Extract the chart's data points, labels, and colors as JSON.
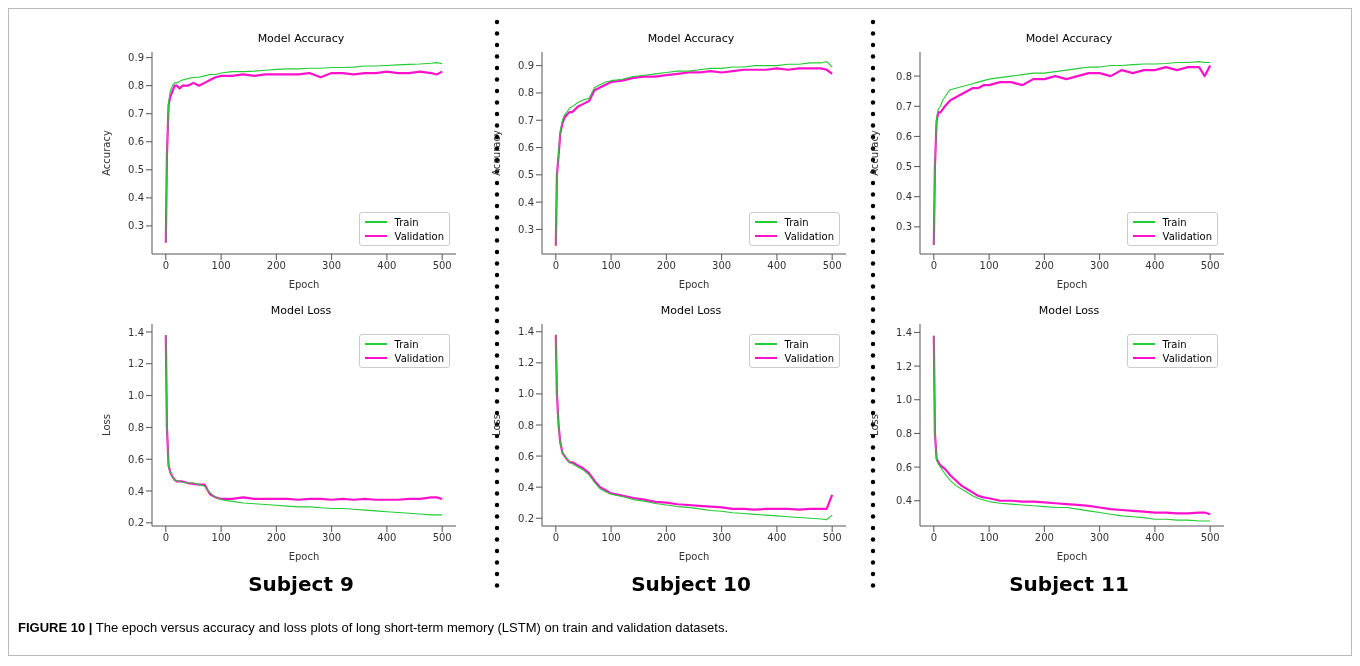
{
  "chart_data": [
    {
      "type": "line",
      "title": "Model Accuracy",
      "xlabel": "Epoch",
      "ylabel": "Accuracy",
      "xlim": [
        -25,
        525
      ],
      "xticks": [
        0,
        100,
        200,
        300,
        400,
        500
      ],
      "ylim": [
        0.2,
        0.92
      ],
      "yticks": [
        0.3,
        0.4,
        0.5,
        0.6,
        0.7,
        0.8,
        0.9
      ],
      "legend": "bottom right",
      "marker": "none",
      "line_style": "solid",
      "x": [
        0,
        2,
        5,
        8,
        12,
        16,
        20,
        25,
        30,
        40,
        50,
        60,
        70,
        80,
        90,
        100,
        120,
        140,
        160,
        180,
        200,
        220,
        240,
        260,
        280,
        300,
        320,
        340,
        360,
        380,
        400,
        420,
        440,
        460,
        480,
        490,
        500
      ],
      "series": [
        {
          "name": "Train",
          "color": "#22cc33",
          "values": [
            0.24,
            0.55,
            0.74,
            0.78,
            0.8,
            0.81,
            0.81,
            0.815,
            0.82,
            0.825,
            0.83,
            0.83,
            0.835,
            0.84,
            0.84,
            0.845,
            0.85,
            0.85,
            0.852,
            0.855,
            0.858,
            0.86,
            0.86,
            0.862,
            0.862,
            0.865,
            0.865,
            0.866,
            0.87,
            0.87,
            0.872,
            0.874,
            0.876,
            0.877,
            0.88,
            0.882,
            0.878
          ]
        },
        {
          "name": "Validation",
          "color": "#ff11cc",
          "values": [
            0.24,
            0.55,
            0.73,
            0.76,
            0.78,
            0.8,
            0.8,
            0.79,
            0.8,
            0.8,
            0.81,
            0.8,
            0.81,
            0.82,
            0.83,
            0.835,
            0.835,
            0.84,
            0.835,
            0.84,
            0.84,
            0.84,
            0.84,
            0.845,
            0.83,
            0.845,
            0.845,
            0.84,
            0.845,
            0.845,
            0.85,
            0.845,
            0.845,
            0.85,
            0.845,
            0.84,
            0.85
          ]
        }
      ]
    },
    {
      "type": "line",
      "title": "Model Accuracy",
      "xlabel": "Epoch",
      "ylabel": "Accuracy",
      "xlim": [
        -25,
        525
      ],
      "xticks": [
        0,
        100,
        200,
        300,
        400,
        500
      ],
      "ylim": [
        0.21,
        0.95
      ],
      "yticks": [
        0.3,
        0.4,
        0.5,
        0.6,
        0.7,
        0.8,
        0.9
      ],
      "legend": "bottom right",
      "marker": "none",
      "line_style": "solid",
      "x": [
        0,
        2,
        5,
        8,
        12,
        16,
        20,
        25,
        30,
        40,
        50,
        60,
        70,
        80,
        90,
        100,
        120,
        140,
        160,
        180,
        200,
        220,
        240,
        260,
        280,
        300,
        320,
        340,
        360,
        380,
        400,
        420,
        440,
        460,
        480,
        490,
        500
      ],
      "series": [
        {
          "name": "Train",
          "color": "#22cc33",
          "values": [
            0.24,
            0.5,
            0.58,
            0.66,
            0.7,
            0.72,
            0.73,
            0.745,
            0.75,
            0.765,
            0.775,
            0.78,
            0.82,
            0.83,
            0.84,
            0.845,
            0.85,
            0.86,
            0.865,
            0.87,
            0.875,
            0.88,
            0.88,
            0.885,
            0.89,
            0.89,
            0.895,
            0.895,
            0.9,
            0.9,
            0.9,
            0.905,
            0.905,
            0.91,
            0.91,
            0.915,
            0.895
          ]
        },
        {
          "name": "Validation",
          "color": "#ff11cc",
          "values": [
            0.24,
            0.5,
            0.57,
            0.65,
            0.69,
            0.71,
            0.72,
            0.73,
            0.73,
            0.75,
            0.76,
            0.77,
            0.81,
            0.82,
            0.83,
            0.84,
            0.845,
            0.855,
            0.86,
            0.86,
            0.865,
            0.87,
            0.875,
            0.875,
            0.88,
            0.875,
            0.88,
            0.885,
            0.885,
            0.885,
            0.89,
            0.885,
            0.89,
            0.89,
            0.89,
            0.885,
            0.87
          ]
        }
      ]
    },
    {
      "type": "line",
      "title": "Model Accuracy",
      "xlabel": "Epoch",
      "ylabel": "Accuracy",
      "xlim": [
        -25,
        525
      ],
      "xticks": [
        0,
        100,
        200,
        300,
        400,
        500
      ],
      "ylim": [
        0.21,
        0.88
      ],
      "yticks": [
        0.3,
        0.4,
        0.5,
        0.6,
        0.7,
        0.8
      ],
      "legend": "bottom right",
      "marker": "none",
      "line_style": "solid",
      "x": [
        0,
        2,
        5,
        8,
        12,
        16,
        20,
        25,
        30,
        40,
        50,
        60,
        70,
        80,
        90,
        100,
        120,
        140,
        160,
        180,
        200,
        220,
        240,
        260,
        280,
        300,
        320,
        340,
        360,
        380,
        400,
        420,
        440,
        460,
        480,
        490,
        500
      ],
      "series": [
        {
          "name": "Train",
          "color": "#22cc33",
          "values": [
            0.24,
            0.5,
            0.66,
            0.69,
            0.7,
            0.72,
            0.73,
            0.745,
            0.755,
            0.76,
            0.765,
            0.77,
            0.775,
            0.78,
            0.785,
            0.79,
            0.795,
            0.8,
            0.805,
            0.81,
            0.81,
            0.815,
            0.82,
            0.825,
            0.83,
            0.83,
            0.835,
            0.835,
            0.838,
            0.84,
            0.84,
            0.842,
            0.845,
            0.845,
            0.848,
            0.845,
            0.845
          ]
        },
        {
          "name": "Validation",
          "color": "#ff11cc",
          "values": [
            0.24,
            0.5,
            0.65,
            0.68,
            0.68,
            0.69,
            0.7,
            0.71,
            0.72,
            0.73,
            0.74,
            0.75,
            0.76,
            0.76,
            0.77,
            0.77,
            0.78,
            0.78,
            0.77,
            0.79,
            0.79,
            0.8,
            0.79,
            0.8,
            0.81,
            0.81,
            0.8,
            0.82,
            0.81,
            0.82,
            0.82,
            0.83,
            0.82,
            0.83,
            0.83,
            0.8,
            0.835
          ]
        }
      ]
    },
    {
      "type": "line",
      "title": "Model Loss",
      "xlabel": "Epoch",
      "ylabel": "Loss",
      "xlim": [
        -25,
        525
      ],
      "xticks": [
        0,
        100,
        200,
        300,
        400,
        500
      ],
      "ylim": [
        0.18,
        1.45
      ],
      "yticks": [
        {
          "value": 0.2,
          "label": "0.2"
        },
        {
          "value": 0.4,
          "label": "0.4"
        },
        {
          "value": 0.6,
          "label": "0.6"
        },
        {
          "value": 0.8,
          "label": "0.8"
        },
        {
          "value": 1.0,
          "label": "1.0"
        },
        {
          "value": 1.2,
          "label": "1.2"
        },
        {
          "value": 1.4,
          "label": "1.4"
        }
      ],
      "legend": "top right",
      "marker": "none",
      "line_style": "solid",
      "annotations": [
        "Subject 9"
      ],
      "x": [
        0,
        2,
        5,
        8,
        12,
        16,
        20,
        25,
        30,
        40,
        50,
        60,
        70,
        80,
        90,
        100,
        120,
        140,
        160,
        180,
        200,
        220,
        240,
        260,
        280,
        300,
        320,
        340,
        360,
        380,
        400,
        420,
        440,
        460,
        480,
        490,
        500
      ],
      "series": [
        {
          "name": "Train",
          "color": "#22cc33",
          "values": [
            1.38,
            0.8,
            0.55,
            0.52,
            0.49,
            0.47,
            0.465,
            0.46,
            0.455,
            0.45,
            0.45,
            0.44,
            0.43,
            0.39,
            0.36,
            0.345,
            0.335,
            0.325,
            0.32,
            0.315,
            0.31,
            0.305,
            0.3,
            0.3,
            0.295,
            0.29,
            0.29,
            0.285,
            0.28,
            0.275,
            0.27,
            0.265,
            0.26,
            0.255,
            0.25,
            0.25,
            0.25
          ]
        },
        {
          "name": "Validation",
          "color": "#ff11cc",
          "values": [
            1.38,
            0.8,
            0.56,
            0.52,
            0.49,
            0.47,
            0.46,
            0.46,
            0.46,
            0.45,
            0.445,
            0.44,
            0.44,
            0.38,
            0.36,
            0.35,
            0.35,
            0.36,
            0.35,
            0.35,
            0.35,
            0.35,
            0.345,
            0.35,
            0.35,
            0.345,
            0.35,
            0.345,
            0.35,
            0.345,
            0.345,
            0.345,
            0.35,
            0.35,
            0.36,
            0.36,
            0.35
          ]
        }
      ]
    },
    {
      "type": "line",
      "title": "Model Loss",
      "xlabel": "Epoch",
      "ylabel": "Loss",
      "xlim": [
        -25,
        525
      ],
      "xticks": [
        0,
        100,
        200,
        300,
        400,
        500
      ],
      "ylim": [
        0.15,
        1.45
      ],
      "yticks": [
        {
          "value": 0.2,
          "label": "0.2"
        },
        {
          "value": 0.4,
          "label": "0.4"
        },
        {
          "value": 0.6,
          "label": "0.6"
        },
        {
          "value": 0.8,
          "label": "0.8"
        },
        {
          "value": 1.0,
          "label": "1.0"
        },
        {
          "value": 1.2,
          "label": "1.2"
        },
        {
          "value": 1.4,
          "label": "1.4"
        }
      ],
      "legend": "top right",
      "marker": "none",
      "line_style": "solid",
      "annotations": [
        "Subject 10"
      ],
      "x": [
        0,
        2,
        5,
        8,
        12,
        16,
        20,
        25,
        30,
        40,
        50,
        60,
        70,
        80,
        90,
        100,
        120,
        140,
        160,
        180,
        200,
        220,
        240,
        260,
        280,
        300,
        320,
        340,
        360,
        380,
        400,
        420,
        440,
        460,
        480,
        490,
        500
      ],
      "series": [
        {
          "name": "Train",
          "color": "#22cc33",
          "values": [
            1.38,
            1.0,
            0.8,
            0.68,
            0.62,
            0.6,
            0.58,
            0.56,
            0.55,
            0.53,
            0.51,
            0.48,
            0.43,
            0.39,
            0.37,
            0.355,
            0.34,
            0.32,
            0.31,
            0.295,
            0.285,
            0.275,
            0.27,
            0.26,
            0.25,
            0.245,
            0.235,
            0.23,
            0.225,
            0.22,
            0.215,
            0.21,
            0.205,
            0.2,
            0.195,
            0.19,
            0.22
          ]
        },
        {
          "name": "Validation",
          "color": "#ff11cc",
          "values": [
            1.38,
            1.0,
            0.8,
            0.69,
            0.62,
            0.6,
            0.58,
            0.56,
            0.56,
            0.54,
            0.52,
            0.49,
            0.44,
            0.4,
            0.38,
            0.36,
            0.345,
            0.33,
            0.32,
            0.305,
            0.3,
            0.29,
            0.285,
            0.28,
            0.275,
            0.27,
            0.26,
            0.26,
            0.255,
            0.26,
            0.26,
            0.26,
            0.255,
            0.26,
            0.26,
            0.26,
            0.35
          ]
        }
      ]
    },
    {
      "type": "line",
      "title": "Model Loss",
      "xlabel": "Epoch",
      "ylabel": "Loss",
      "xlim": [
        -25,
        525
      ],
      "xticks": [
        0,
        100,
        200,
        300,
        400,
        500
      ],
      "ylim": [
        0.25,
        1.45
      ],
      "yticks": [
        {
          "value": 0.4,
          "label": "0.4"
        },
        {
          "value": 0.6,
          "label": "0.6"
        },
        {
          "value": 0.8,
          "label": "0.8"
        },
        {
          "value": 1.0,
          "label": "1.0"
        },
        {
          "value": 1.2,
          "label": "1.2"
        },
        {
          "value": 1.4,
          "label": "1.4"
        }
      ],
      "legend": "top right",
      "marker": "none",
      "line_style": "solid",
      "annotations": [
        "Subject 11",
        "FIGURE 10 | The epoch versus accuracy and loss plots of long short-term memory (LSTM) on train and validation datasets."
      ],
      "x": [
        0,
        2,
        5,
        8,
        12,
        16,
        20,
        25,
        30,
        40,
        50,
        60,
        70,
        80,
        90,
        100,
        120,
        140,
        160,
        180,
        200,
        220,
        240,
        260,
        280,
        300,
        320,
        340,
        360,
        380,
        400,
        420,
        440,
        460,
        480,
        490,
        500
      ],
      "series": [
        {
          "name": "Train",
          "color": "#22cc33",
          "values": [
            1.38,
            0.8,
            0.64,
            0.62,
            0.6,
            0.58,
            0.56,
            0.54,
            0.52,
            0.49,
            0.47,
            0.45,
            0.43,
            0.415,
            0.405,
            0.395,
            0.385,
            0.38,
            0.375,
            0.37,
            0.365,
            0.36,
            0.36,
            0.35,
            0.34,
            0.33,
            0.32,
            0.31,
            0.305,
            0.3,
            0.29,
            0.29,
            0.285,
            0.285,
            0.28,
            0.28,
            0.28
          ]
        },
        {
          "name": "Validation",
          "color": "#ff11cc",
          "values": [
            1.38,
            0.8,
            0.65,
            0.63,
            0.61,
            0.6,
            0.59,
            0.57,
            0.55,
            0.52,
            0.49,
            0.47,
            0.45,
            0.43,
            0.42,
            0.415,
            0.4,
            0.4,
            0.395,
            0.395,
            0.39,
            0.385,
            0.38,
            0.375,
            0.37,
            0.36,
            0.35,
            0.345,
            0.34,
            0.335,
            0.33,
            0.33,
            0.325,
            0.325,
            0.33,
            0.33,
            0.32
          ]
        }
      ]
    }
  ]
}
